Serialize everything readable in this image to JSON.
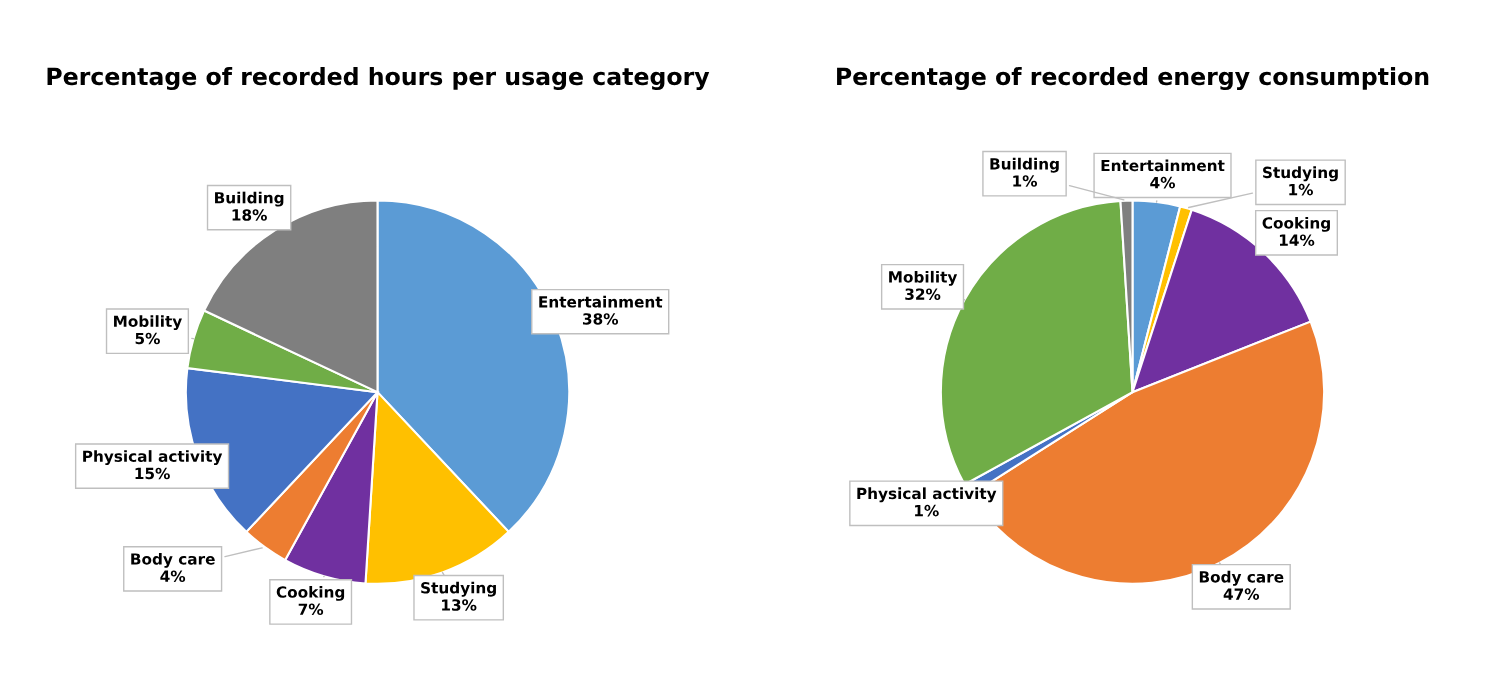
{
  "chart_data": [
    {
      "type": "pie",
      "title": "Percentage of recorded hours per usage category",
      "categories": [
        "Entertainment",
        "Studying",
        "Cooking",
        "Body care",
        "Physical activity",
        "Mobility",
        "Building"
      ],
      "values": [
        38,
        13,
        7,
        4,
        15,
        5,
        18
      ],
      "value_labels": [
        "38%",
        "13%",
        "7%",
        "4%",
        "15%",
        "5%",
        "18%"
      ],
      "colors": [
        "#5b9bd5",
        "#ffc000",
        "#7030a0",
        "#ed7d31",
        "#4472c4",
        "#70ad47",
        "#7f7f7f"
      ]
    },
    {
      "type": "pie",
      "title": "Percentage of recorded energy consumption",
      "categories": [
        "Entertainment",
        "Studying",
        "Cooking",
        "Body care",
        "Physical activity",
        "Mobility",
        "Building"
      ],
      "values": [
        4,
        1,
        14,
        47,
        1,
        32,
        1
      ],
      "value_labels": [
        "4%",
        "1%",
        "14%",
        "47%",
        "1%",
        "32%",
        "1%"
      ],
      "colors": [
        "#5b9bd5",
        "#ffc000",
        "#7030a0",
        "#ed7d31",
        "#4472c4",
        "#70ad47",
        "#7f7f7f"
      ]
    }
  ]
}
